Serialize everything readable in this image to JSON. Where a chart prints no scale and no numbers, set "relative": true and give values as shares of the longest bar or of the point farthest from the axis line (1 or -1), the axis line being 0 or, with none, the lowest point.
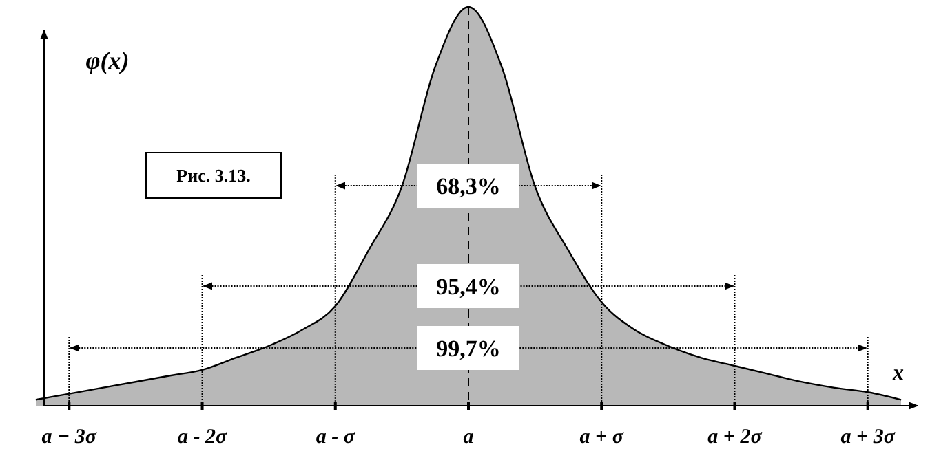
{
  "chart_data": {
    "type": "area",
    "relative": true,
    "xlabel": "x",
    "ylabel": "φ(x)",
    "categories": [
      null,
      "a − 3σ",
      null,
      null,
      null,
      "a - 2σ",
      null,
      null,
      null,
      "a - σ",
      null,
      null,
      null,
      "a",
      null,
      null,
      null,
      "a + σ",
      null,
      null,
      null,
      "a + 2σ",
      null,
      null,
      null,
      "a + 3σ",
      null
    ],
    "series": [
      {
        "color": "#b8b8b8",
        "values": [
          0.015,
          0.03,
          0.045,
          0.06,
          0.075,
          0.09,
          0.12,
          0.15,
          0.19,
          0.25,
          0.39,
          0.55,
          0.85,
          1,
          0.85,
          0.55,
          0.39,
          0.26,
          0.19,
          0.15,
          0.12,
          0.1,
          0.08,
          0.06,
          0.045,
          0.034,
          0.015
        ]
      }
    ],
    "ref_lines": [
      {
        "axis": "x",
        "value": "a",
        "line_style": "dashed"
      }
    ],
    "annotations": [
      "Рис. 3.13.",
      "68,3%",
      "95,4%",
      "99,7%"
    ]
  }
}
